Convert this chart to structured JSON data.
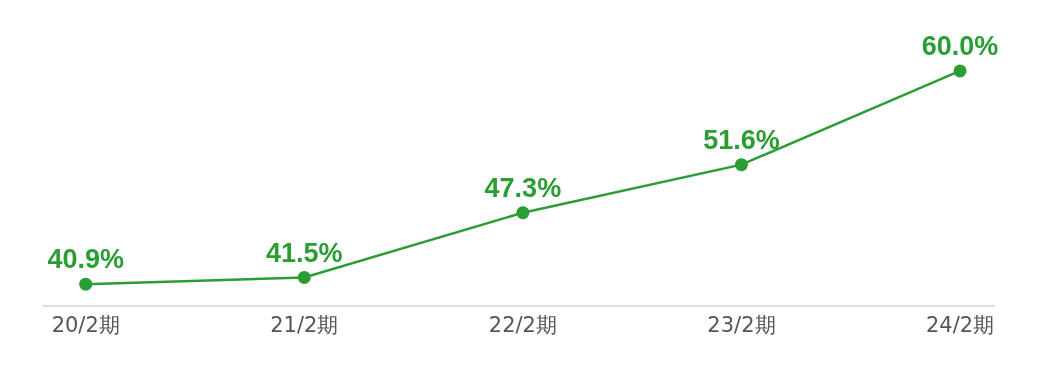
{
  "chart_data": {
    "type": "line",
    "categories": [
      "20/2期",
      "21/2期",
      "22/2期",
      "23/2期",
      "24/2期"
    ],
    "series": [
      {
        "color": "#2a9d34",
        "values": [
          40.9,
          41.5,
          47.3,
          51.6,
          60.0
        ],
        "value_labels": [
          "40.9%",
          "41.5%",
          "47.3%",
          "51.6%",
          "60.0%"
        ]
      }
    ],
    "grid": false,
    "marker": "circle",
    "line_style": "solid",
    "tick_labels": "x"
  }
}
